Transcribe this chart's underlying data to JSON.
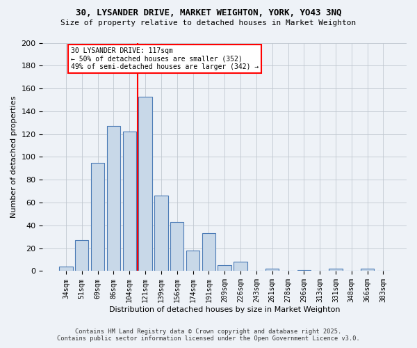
{
  "title_line1": "30, LYSANDER DRIVE, MARKET WEIGHTON, YORK, YO43 3NQ",
  "title_line2": "Size of property relative to detached houses in Market Weighton",
  "xlabel": "Distribution of detached houses by size in Market Weighton",
  "ylabel": "Number of detached properties",
  "categories": [
    "34sqm",
    "51sqm",
    "69sqm",
    "86sqm",
    "104sqm",
    "121sqm",
    "139sqm",
    "156sqm",
    "174sqm",
    "191sqm",
    "209sqm",
    "226sqm",
    "243sqm",
    "261sqm",
    "278sqm",
    "296sqm",
    "313sqm",
    "331sqm",
    "348sqm",
    "366sqm",
    "383sqm"
  ],
  "values": [
    4,
    27,
    95,
    127,
    122,
    153,
    66,
    43,
    18,
    33,
    5,
    8,
    0,
    2,
    0,
    1,
    0,
    2,
    0,
    2,
    0
  ],
  "bar_color": "#c8d8e8",
  "bar_edge_color": "#4a7ab5",
  "vline_color": "red",
  "annotation_title": "30 LYSANDER DRIVE: 117sqm",
  "annotation_line2": "← 50% of detached houses are smaller (352)",
  "annotation_line3": "49% of semi-detached houses are larger (342) →",
  "ylim": [
    0,
    200
  ],
  "yticks": [
    0,
    20,
    40,
    60,
    80,
    100,
    120,
    140,
    160,
    180,
    200
  ],
  "footer_line1": "Contains HM Land Registry data © Crown copyright and database right 2025.",
  "footer_line2": "Contains public sector information licensed under the Open Government Licence v3.0.",
  "background_color": "#eef2f7"
}
